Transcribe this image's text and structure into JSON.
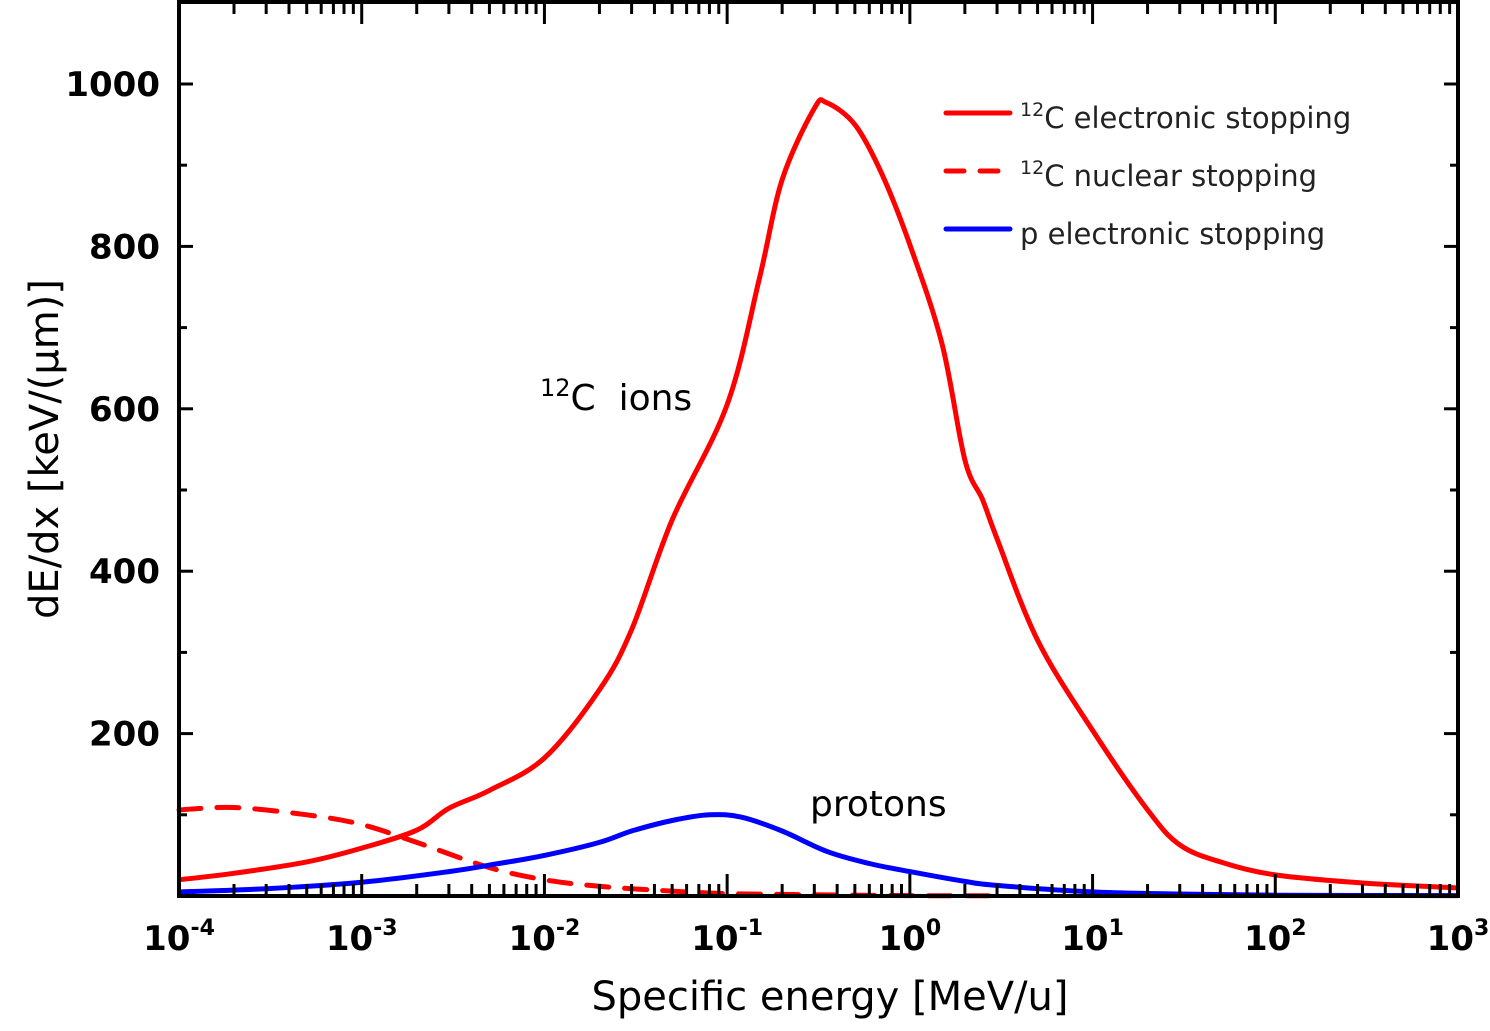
{
  "chart_data": {
    "type": "line",
    "title": "",
    "xlabel": "Specific energy [MeV/u]",
    "ylabel": "dE/dx [keV/(µm)]",
    "xscale": "log",
    "xlim": [
      0.0001,
      1000
    ],
    "ylim": [
      0,
      1100
    ],
    "grid": false,
    "x_ticks": [
      {
        "base": "10",
        "exp": "-4"
      },
      {
        "base": "10",
        "exp": "-3"
      },
      {
        "base": "10",
        "exp": "-2"
      },
      {
        "base": "10",
        "exp": "-1"
      },
      {
        "base": "10",
        "exp": "0"
      },
      {
        "base": "10",
        "exp": "1"
      },
      {
        "base": "10",
        "exp": "2"
      },
      {
        "base": "10",
        "exp": "3"
      }
    ],
    "y_ticks": [
      "200",
      "400",
      "600",
      "800",
      "1000"
    ],
    "y_tick_values": [
      200,
      400,
      600,
      800,
      1000
    ],
    "legend_position": "top-right",
    "series": [
      {
        "name": "12C electronic stopping",
        "legend_sup": "12",
        "legend_text": "C electronic stopping",
        "color": "#ff0000",
        "style": "solid",
        "x": [
          0.0001,
          0.0002,
          0.0005,
          0.001,
          0.002,
          0.003,
          0.005,
          0.01,
          0.02,
          0.03,
          0.05,
          0.1,
          0.15,
          0.2,
          0.3,
          0.35,
          0.5,
          0.7,
          1,
          1.5,
          2,
          2.5,
          3,
          5,
          10,
          20,
          30,
          50,
          100,
          300,
          1000
        ],
        "y": [
          20,
          28,
          42,
          59,
          81,
          108,
          130,
          170,
          254,
          328,
          463,
          605,
          760,
          882,
          970,
          977,
          950,
          890,
          802,
          680,
          537,
          488,
          440,
          315,
          204,
          106,
          63,
          42,
          26,
          16,
          10
        ]
      },
      {
        "name": "12C nuclear stopping",
        "legend_sup": "12",
        "legend_text": "C nuclear stopping",
        "color": "#ff0000",
        "style": "dashed",
        "x": [
          0.0001,
          0.0002,
          0.0005,
          0.001,
          0.002,
          0.005,
          0.01,
          0.02,
          0.05,
          0.1,
          0.3,
          1,
          3
        ],
        "y": [
          106,
          109,
          100,
          88,
          66,
          35,
          20,
          12,
          6,
          3,
          1.5,
          0.5,
          0.2
        ]
      },
      {
        "name": "p electronic stopping",
        "legend_sup": "",
        "legend_text": "p electronic stopping",
        "color": "#0000ff",
        "style": "solid",
        "x": [
          0.0001,
          0.0003,
          0.001,
          0.003,
          0.005,
          0.01,
          0.02,
          0.03,
          0.05,
          0.08,
          0.12,
          0.2,
          0.35,
          0.6,
          1,
          2,
          3,
          10,
          30,
          100,
          1000
        ],
        "y": [
          5,
          9,
          17,
          30,
          38,
          50,
          66,
          80,
          93,
          100,
          97,
          80,
          55,
          40,
          30,
          18,
          13,
          5,
          2.5,
          1,
          0.5
        ]
      }
    ],
    "annotations": [
      {
        "sup": "12",
        "text": "C  ions"
      },
      {
        "sup": "",
        "text": "protons"
      }
    ]
  }
}
